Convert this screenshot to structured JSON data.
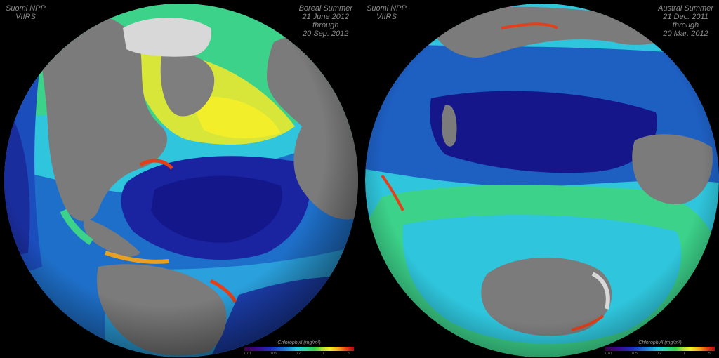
{
  "left_panel": {
    "satellite_line1": "Suomi NPP",
    "satellite_line2": "VIIRS",
    "period_line1": "Boreal Summer",
    "period_line2": "21 June 2012",
    "period_line3": "through",
    "period_line4": "20 Sep. 2012"
  },
  "right_panel": {
    "satellite_line1": "Suomi NPP",
    "satellite_line2": "VIIRS",
    "period_line1": "Austral Summer",
    "period_line2": "21 Dec. 2011",
    "period_line3": "through",
    "period_line4": "20 Mar. 2012"
  },
  "legend": {
    "title": "Chlorophyll (mg/m³)",
    "ticks": [
      "0.01",
      "0.05",
      "0.2",
      "1",
      "5"
    ]
  },
  "colors": {
    "background": "#000000",
    "land": "#7b7b7b",
    "ice": "#d8d8d8",
    "low_chl": "#1a1a8c",
    "mid_chl": "#2fc6dd",
    "high_chl": "#e0301a"
  }
}
